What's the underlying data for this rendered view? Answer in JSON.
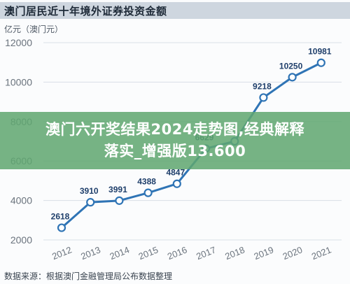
{
  "header": {
    "title": "澳门居民近十年境外证券投资金额"
  },
  "unit_label": "亿元（澳门元）",
  "banner": {
    "line1": "澳门六开奖结果2024走势图,经典解释",
    "line2": "落实_增强版13.600"
  },
  "footer": {
    "source": "数据来源：根据澳门金融管理局公布数据整理"
  },
  "colors": {
    "line": "#2f74b5",
    "marker_fill": "#ffffff",
    "label": "#1f3f6b",
    "grid": "#d9dfe6",
    "axis_text": "#6a737d"
  },
  "chart_data": {
    "type": "line",
    "title": "澳门居民近十年境外证券投资金额",
    "ylabel": "亿元（澳门元）",
    "x": [
      "2012",
      "2013",
      "2014",
      "2015",
      "2016",
      "2017",
      "2018",
      "2019",
      "2020",
      "2021"
    ],
    "y_ticks": [
      2000,
      4000,
      6000,
      8000,
      10000,
      12000
    ],
    "ylim": [
      2000,
      12000
    ],
    "grid": true,
    "series": [
      {
        "values": [
          2618,
          3910,
          3991,
          4388,
          4847,
          6629,
          7000,
          9218,
          10250,
          10981
        ],
        "labels": [
          "2618",
          "3910",
          "3991",
          "4388",
          "4847",
          "6629",
          "",
          "9218",
          "10250",
          "10981"
        ]
      }
    ]
  }
}
